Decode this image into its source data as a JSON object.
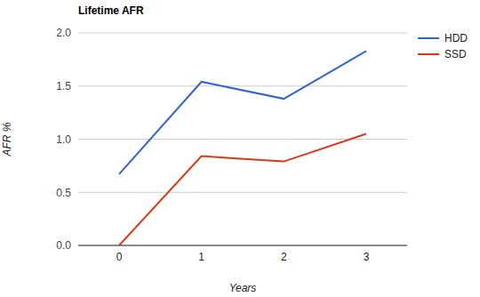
{
  "chart_data": {
    "type": "line",
    "title": "Lifetime AFR",
    "x_label": "Years",
    "y_label": "AFR %",
    "categories": [
      "0",
      "1",
      "2",
      "3"
    ],
    "series": [
      {
        "name": "HDD",
        "color": "#3366cc",
        "values": [
          0.67,
          1.54,
          1.38,
          1.83
        ]
      },
      {
        "name": "SSD",
        "color": "#dc3912",
        "values": [
          0.0,
          0.84,
          0.79,
          1.05
        ]
      }
    ],
    "ylim": [
      0,
      2
    ],
    "yticks": [
      {
        "value": 0,
        "label": "0.0"
      },
      0.5,
      {
        "value": 1,
        "label": "1.0"
      },
      1.5,
      {
        "value": 2,
        "label": "2.0"
      }
    ],
    "grid": true,
    "legend": "right"
  }
}
